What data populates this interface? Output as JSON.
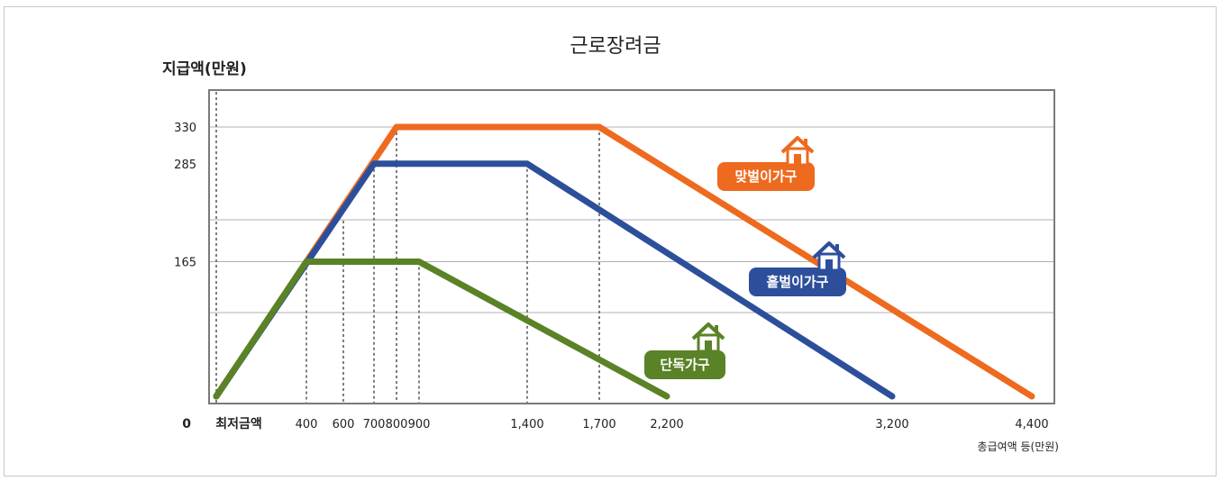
{
  "title": "근로장려금",
  "chart_data": {
    "type": "line",
    "ylabel": "지급액(만원)",
    "xlabel": "총급여액 등(만원)",
    "x_origin_label": "0",
    "y_ticks": [
      165,
      285,
      330
    ],
    "x_ticks": [
      {
        "value": 0,
        "label": "최저금액"
      },
      {
        "value": 400,
        "label": "400"
      },
      {
        "value": 600,
        "label": "600"
      },
      {
        "value": 700,
        "label": "700"
      },
      {
        "value": 800,
        "label": "800"
      },
      {
        "value": 900,
        "label": "900"
      },
      {
        "value": 1400,
        "label": "1,400"
      },
      {
        "value": 1700,
        "label": "1,700"
      },
      {
        "value": 2200,
        "label": "2,200"
      },
      {
        "value": 3200,
        "label": "3,200"
      },
      {
        "value": 4400,
        "label": "4,400"
      }
    ],
    "series": [
      {
        "name": "맞벌이가구",
        "color": "#ee6a1f",
        "x": [
          0,
          800,
          1700,
          4400
        ],
        "y": [
          0,
          330,
          330,
          0
        ]
      },
      {
        "name": "홑벌이가구",
        "color": "#2d4f9b",
        "x": [
          0,
          700,
          1400,
          3200
        ],
        "y": [
          0,
          285,
          285,
          0
        ]
      },
      {
        "name": "단독가구",
        "color": "#5a8226",
        "x": [
          0,
          400,
          900,
          2200
        ],
        "y": [
          0,
          165,
          165,
          0
        ]
      }
    ],
    "legend_placement": "inline-labels-with-house-icons",
    "icon": "house-icon",
    "grid": true
  }
}
